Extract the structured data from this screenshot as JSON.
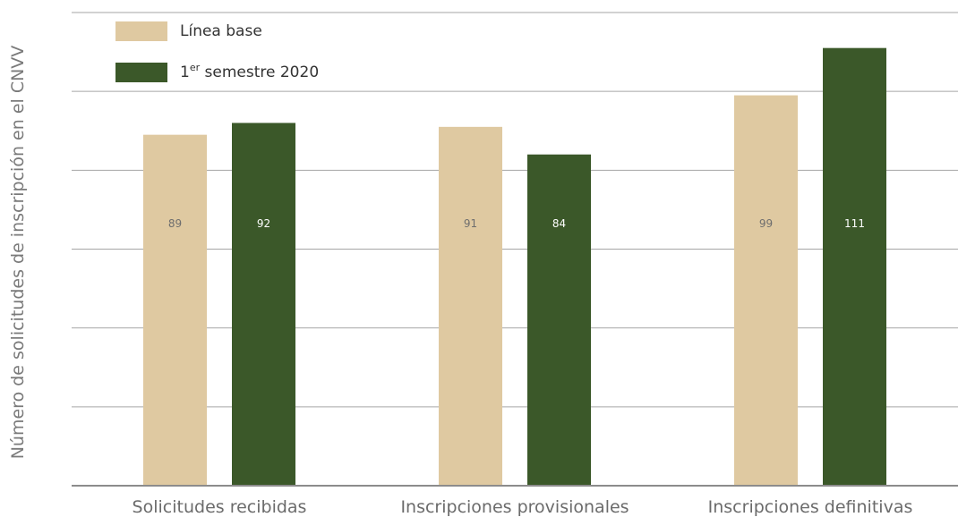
{
  "chart_data": {
    "type": "bar",
    "ylabel": "Número de solicitudes de inscripción en el CNVV",
    "categories": [
      "Solicitudes recibidas",
      "Inscripciones provisionales",
      "Inscripciones definitivas"
    ],
    "series": [
      {
        "name": "Línea base",
        "label_parts": [
          "Línea base"
        ],
        "color": "#dfc9a1",
        "label_color": "#6e6e6e",
        "values": [
          89,
          91,
          99
        ]
      },
      {
        "name": "1er semestre 2020",
        "label_parts": [
          "1",
          "er",
          " semestre 2020"
        ],
        "color": "#3b5829",
        "label_color": "#ffffff",
        "values": [
          92,
          84,
          111
        ]
      }
    ],
    "data_labels": [
      [
        "89",
        "91",
        "99"
      ],
      [
        "92",
        "84",
        "111"
      ]
    ],
    "ylim": [
      0,
      120
    ],
    "grid": true,
    "legend": "top-left"
  }
}
